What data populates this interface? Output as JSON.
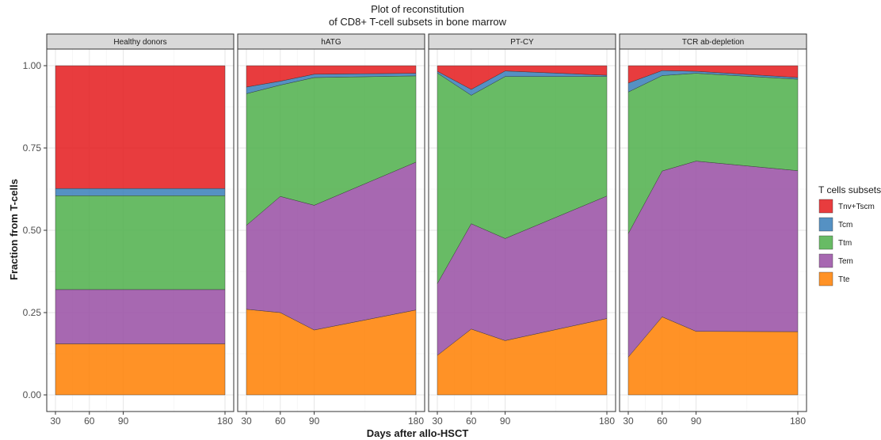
{
  "chart_data": {
    "type": "area",
    "title_line1": "Plot of reconstitution",
    "title_line2": "of CD8+ T-cell subsets in bone marrow",
    "xlabel": "Days after allo-HSCT",
    "ylabel": "Fraction from T-cells",
    "xlim": [
      30,
      180
    ],
    "ylim": [
      0,
      1
    ],
    "x_ticks": [
      30,
      60,
      90,
      180
    ],
    "y_ticks": [
      "0.00",
      "0.25",
      "0.50",
      "0.75",
      "1.00"
    ],
    "legend": {
      "title": "T cells subsets",
      "placement": "right"
    },
    "series": [
      {
        "name": "Tnv+Tscm",
        "color": "#E41A1C"
      },
      {
        "name": "Tcm",
        "color": "#377EB8"
      },
      {
        "name": "Ttm",
        "color": "#4DAF4A"
      },
      {
        "name": "Tem",
        "color": "#984EA3"
      },
      {
        "name": "Tte",
        "color": "#FF7F00"
      }
    ],
    "stack_order_bottom_to_top": [
      "Tte",
      "Tem",
      "Ttm",
      "Tcm",
      "Tnv+Tscm"
    ],
    "panels": [
      {
        "label": "Healthy donors",
        "x": [
          30,
          180
        ],
        "values": {
          "Tte": [
            0.155,
            0.155
          ],
          "Tem": [
            0.165,
            0.165
          ],
          "Ttm": [
            0.285,
            0.285
          ],
          "Tcm": [
            0.022,
            0.022
          ],
          "Tnv+Tscm": [
            0.373,
            0.373
          ]
        }
      },
      {
        "label": "hATG",
        "x": [
          30,
          60,
          90,
          180
        ],
        "values": {
          "Tte": [
            0.26,
            0.25,
            0.197,
            0.258
          ],
          "Tem": [
            0.255,
            0.353,
            0.379,
            0.449
          ],
          "Ttm": [
            0.4,
            0.338,
            0.388,
            0.262
          ],
          "Tcm": [
            0.02,
            0.012,
            0.01,
            0.008
          ],
          "Tnv+Tscm": [
            0.065,
            0.047,
            0.026,
            0.023
          ]
        }
      },
      {
        "label": "PT-CY",
        "x": [
          30,
          60,
          90,
          180
        ],
        "values": {
          "Tte": [
            0.12,
            0.2,
            0.165,
            0.232
          ],
          "Tem": [
            0.218,
            0.32,
            0.31,
            0.372
          ],
          "Ttm": [
            0.64,
            0.39,
            0.492,
            0.363
          ],
          "Tcm": [
            0.005,
            0.018,
            0.017,
            0.004
          ],
          "Tnv+Tscm": [
            0.017,
            0.072,
            0.016,
            0.029
          ]
        }
      },
      {
        "label": "TCR ab-depletion",
        "x": [
          30,
          60,
          90,
          180
        ],
        "values": {
          "Tte": [
            0.115,
            0.237,
            0.193,
            0.192
          ],
          "Tem": [
            0.375,
            0.443,
            0.517,
            0.489
          ],
          "Ttm": [
            0.43,
            0.29,
            0.267,
            0.278
          ],
          "Tcm": [
            0.027,
            0.015,
            0.006,
            0.005
          ],
          "Tnv+Tscm": [
            0.053,
            0.015,
            0.017,
            0.036
          ]
        }
      }
    ]
  }
}
